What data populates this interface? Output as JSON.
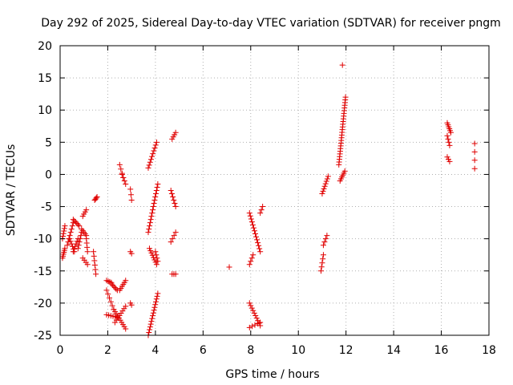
{
  "chart_data": {
    "type": "scatter",
    "title": "Day 292 of 2025, Sidereal Day-to-day VTEC variation (SDTVAR) for receiver pngm",
    "xlabel": "GPS time / hours",
    "ylabel": "SDTVAR / TECUs",
    "xlim": [
      0,
      18
    ],
    "ylim": [
      -25,
      20
    ],
    "xticks": [
      0,
      2,
      4,
      6,
      8,
      10,
      12,
      14,
      16,
      18
    ],
    "yticks": [
      -25,
      -20,
      -15,
      -10,
      -5,
      0,
      5,
      10,
      15,
      20
    ],
    "grid": true,
    "marker": "+",
    "color": "#e00000",
    "segments": [
      [
        0.1,
        -13.0,
        0.2,
        -11.5,
        6
      ],
      [
        0.1,
        -10.0,
        0.2,
        -8.0,
        6
      ],
      [
        0.3,
        -11.0,
        0.55,
        -7.5,
        8
      ],
      [
        0.4,
        -10.0,
        0.6,
        -12.0,
        6
      ],
      [
        0.55,
        -12.0,
        0.75,
        -10.0,
        6
      ],
      [
        0.55,
        -7.0,
        0.8,
        -8.0,
        6
      ],
      [
        0.75,
        -11.5,
        0.9,
        -9.0,
        6
      ],
      [
        0.9,
        -8.5,
        1.1,
        -9.5,
        5
      ],
      [
        0.95,
        -13.0,
        1.15,
        -14.0,
        4
      ],
      [
        0.95,
        -6.5,
        1.1,
        -5.5,
        4
      ],
      [
        1.1,
        -10.0,
        1.15,
        -12.0,
        4
      ],
      [
        1.4,
        -12.0,
        1.5,
        -15.5,
        6
      ],
      [
        1.45,
        -4.0,
        1.55,
        -3.5,
        4
      ],
      [
        1.95,
        -16.5,
        2.15,
        -16.8,
        4
      ],
      [
        1.95,
        -18.0,
        2.25,
        -21.0,
        6
      ],
      [
        1.95,
        -21.8,
        2.4,
        -22.2,
        6
      ],
      [
        2.15,
        -17.0,
        2.4,
        -18.0,
        6
      ],
      [
        2.25,
        -21.0,
        2.75,
        -24.0,
        10
      ],
      [
        2.3,
        -23.0,
        2.75,
        -20.5,
        8
      ],
      [
        2.5,
        -18.0,
        2.75,
        -16.5,
        6
      ],
      [
        2.5,
        1.5,
        2.65,
        -0.5,
        4
      ],
      [
        2.6,
        0.0,
        2.75,
        -1.5,
        4
      ],
      [
        2.95,
        -2.3,
        3.0,
        -4.0,
        3
      ],
      [
        2.95,
        -12.0,
        3.0,
        -12.3,
        2
      ],
      [
        2.95,
        -20.0,
        3.0,
        -20.3,
        2
      ],
      [
        3.7,
        -25.0,
        4.1,
        -18.5,
        16
      ],
      [
        3.7,
        -9.0,
        4.1,
        -1.5,
        16
      ],
      [
        3.7,
        1.0,
        4.05,
        5.0,
        10
      ],
      [
        3.75,
        -11.5,
        4.05,
        -14.0,
        8
      ],
      [
        4.0,
        -12.0,
        4.1,
        -13.5,
        4
      ],
      [
        4.65,
        -2.5,
        4.85,
        -5.0,
        6
      ],
      [
        4.7,
        5.5,
        4.85,
        6.5,
        4
      ],
      [
        4.65,
        -10.5,
        4.85,
        -9.0,
        4
      ],
      [
        4.7,
        -15.5,
        4.85,
        -15.5,
        3
      ],
      [
        7.1,
        -14.4,
        7.1,
        -14.4,
        1
      ],
      [
        7.95,
        -6.0,
        8.4,
        -12.0,
        14
      ],
      [
        7.95,
        -20.0,
        8.4,
        -23.5,
        10
      ],
      [
        7.95,
        -14.0,
        8.1,
        -12.5,
        4
      ],
      [
        7.95,
        -23.8,
        8.4,
        -23.0,
        5
      ],
      [
        8.4,
        -6.0,
        8.5,
        -5.0,
        3
      ],
      [
        10.95,
        -15.0,
        11.05,
        -12.5,
        5
      ],
      [
        11.0,
        -3.0,
        11.25,
        -0.3,
        8
      ],
      [
        11.05,
        -11.0,
        11.2,
        -9.5,
        4
      ],
      [
        11.75,
        -1.0,
        11.95,
        0.5,
        6
      ],
      [
        11.7,
        1.5,
        11.98,
        12.0,
        26
      ],
      [
        11.85,
        17.0,
        11.85,
        17.0,
        1
      ],
      [
        16.25,
        8.0,
        16.4,
        6.5,
        6
      ],
      [
        16.25,
        6.0,
        16.35,
        4.5,
        4
      ],
      [
        16.25,
        2.7,
        16.35,
        2.0,
        3
      ],
      [
        17.4,
        4.8,
        17.4,
        0.9,
        4
      ]
    ]
  }
}
